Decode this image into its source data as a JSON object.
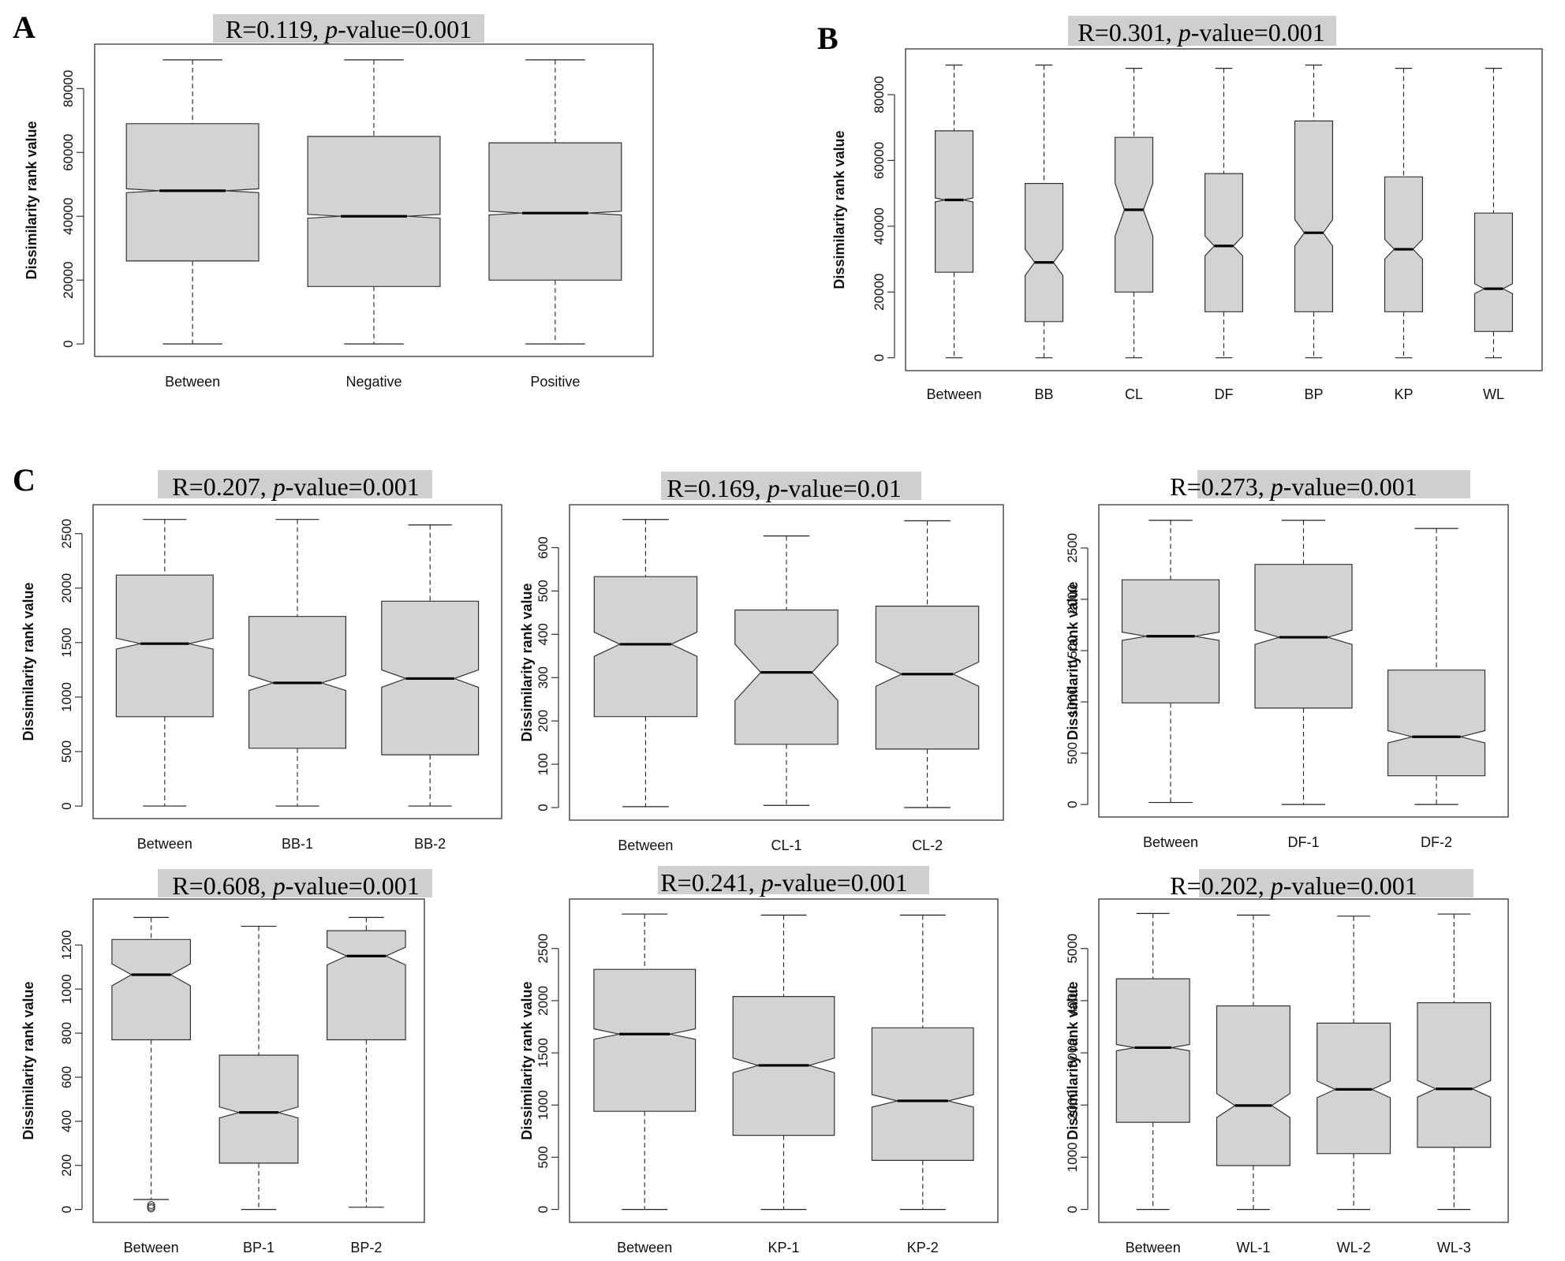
{
  "figure": {
    "panel_letters": [
      "A",
      "B",
      "C"
    ]
  },
  "chart_data": [
    {
      "type": "boxplot",
      "panel": "A",
      "title": "R=0.119, p-value=0.001",
      "title_parts": {
        "prefix": "R=0.119, ",
        "p": "p",
        "suffix": "-value=0.001"
      },
      "ylabel": "Dissimilarity rank value",
      "ylim": [
        0,
        90000
      ],
      "yticks": [
        0,
        20000,
        40000,
        60000,
        80000
      ],
      "categories": [
        "Between",
        "Negative",
        "Positive"
      ],
      "boxes": [
        {
          "min": 0,
          "q1": 26000,
          "median": 48000,
          "q3": 69000,
          "max": 89000,
          "notch": 600
        },
        {
          "min": 0,
          "q1": 18000,
          "median": 40000,
          "q3": 65000,
          "max": 89000,
          "notch": 600
        },
        {
          "min": 0,
          "q1": 20000,
          "median": 41000,
          "q3": 63000,
          "max": 89000,
          "notch": 600
        }
      ]
    },
    {
      "type": "boxplot",
      "panel": "B",
      "title": "R=0.301, p-value=0.001",
      "title_parts": {
        "prefix": "R=0.301, ",
        "p": "p",
        "suffix": "-value=0.001"
      },
      "ylabel": "Dissimilarity rank value",
      "ylim": [
        0,
        90000
      ],
      "yticks": [
        0,
        20000,
        40000,
        60000,
        80000
      ],
      "categories": [
        "Between",
        "BB",
        "CL",
        "DF",
        "BP",
        "KP",
        "WL"
      ],
      "boxes": [
        {
          "min": 0,
          "q1": 26000,
          "median": 48000,
          "q3": 69000,
          "max": 89000,
          "notch": 600
        },
        {
          "min": 0,
          "q1": 11000,
          "median": 29000,
          "q3": 53000,
          "max": 89000,
          "notch": 4000
        },
        {
          "min": 0,
          "q1": 20000,
          "median": 45000,
          "q3": 67000,
          "max": 88000,
          "notch": 8000
        },
        {
          "min": 0,
          "q1": 14000,
          "median": 34000,
          "q3": 56000,
          "max": 88000,
          "notch": 3000
        },
        {
          "min": 0,
          "q1": 14000,
          "median": 38000,
          "q3": 72000,
          "max": 89000,
          "notch": 4000
        },
        {
          "min": 0,
          "q1": 14000,
          "median": 33000,
          "q3": 55000,
          "max": 88000,
          "notch": 3000
        },
        {
          "min": 0,
          "q1": 8000,
          "median": 21000,
          "q3": 44000,
          "max": 88000,
          "notch": 1500
        }
      ]
    },
    {
      "type": "boxplot",
      "panel": "C1",
      "title": "R=0.207, p-value=0.001",
      "title_parts": {
        "prefix": "R=0.207, ",
        "p": "p",
        "suffix": "-value=0.001"
      },
      "ylabel": "Dissimilarity rank value",
      "ylim": [
        0,
        2650
      ],
      "yticks": [
        0,
        500,
        1000,
        1500,
        2000,
        2500
      ],
      "categories": [
        "Between",
        "BB-1",
        "BB-2"
      ],
      "boxes": [
        {
          "min": 0,
          "q1": 820,
          "median": 1490,
          "q3": 2120,
          "max": 2630,
          "notch": 50
        },
        {
          "min": 0,
          "q1": 530,
          "median": 1130,
          "q3": 1740,
          "max": 2630,
          "notch": 70
        },
        {
          "min": 0,
          "q1": 470,
          "median": 1170,
          "q3": 1880,
          "max": 2580,
          "notch": 80
        }
      ]
    },
    {
      "type": "boxplot",
      "panel": "C2",
      "title": "R=0.169, p-value=0.01",
      "title_parts": {
        "prefix": "R=0.169, ",
        "p": "p",
        "suffix": "-value=0.01"
      },
      "ylabel": "Dissimilarity rank value",
      "ylim": [
        0,
        670
      ],
      "yticks": [
        0,
        100,
        200,
        300,
        400,
        500,
        600
      ],
      "categories": [
        "Between",
        "CL-1",
        "CL-2"
      ],
      "boxes": [
        {
          "min": 2,
          "q1": 210,
          "median": 377,
          "q3": 533,
          "max": 665,
          "notch": 28
        },
        {
          "min": 5,
          "q1": 146,
          "median": 312,
          "q3": 456,
          "max": 627,
          "notch": 65
        },
        {
          "min": 0,
          "q1": 135,
          "median": 308,
          "q3": 465,
          "max": 662,
          "notch": 28
        }
      ]
    },
    {
      "type": "boxplot",
      "panel": "C3",
      "title": "R=0.273, p-value=0.001",
      "title_parts": {
        "prefix": "R=0.273, ",
        "p": "p",
        "suffix": "-value=0.001"
      },
      "ylabel": "Dissimilarity rank value",
      "ylim": [
        0,
        2800
      ],
      "yticks": [
        0,
        500,
        1000,
        1500,
        2000,
        2500
      ],
      "categories": [
        "Between",
        "DF-1",
        "DF-2"
      ],
      "boxes": [
        {
          "min": 20,
          "q1": 990,
          "median": 1640,
          "q3": 2190,
          "max": 2770,
          "notch": 40
        },
        {
          "min": 0,
          "q1": 940,
          "median": 1630,
          "q3": 2340,
          "max": 2770,
          "notch": 70
        },
        {
          "min": 0,
          "q1": 280,
          "median": 660,
          "q3": 1310,
          "max": 2690,
          "notch": 60
        }
      ]
    },
    {
      "type": "boxplot",
      "panel": "C4",
      "title": "R=0.608, p-value=0.001",
      "title_parts": {
        "prefix": "R=0.608, ",
        "p": "p",
        "suffix": "-value=0.001"
      },
      "ylabel": "Dissimilarity rank value",
      "ylim": [
        0,
        1350
      ],
      "yticks": [
        0,
        200,
        400,
        600,
        800,
        1000,
        1200
      ],
      "categories": [
        "Between",
        "BP-1",
        "BP-2"
      ],
      "boxes": [
        {
          "min": 45,
          "q1": 770,
          "median": 1065,
          "q3": 1225,
          "max": 1325,
          "notch": 50,
          "outliers": [
            5,
            12,
            20
          ]
        },
        {
          "min": 0,
          "q1": 210,
          "median": 440,
          "q3": 700,
          "max": 1285,
          "notch": 25
        },
        {
          "min": 10,
          "q1": 770,
          "median": 1150,
          "q3": 1265,
          "max": 1325,
          "notch": 40
        }
      ]
    },
    {
      "type": "boxplot",
      "panel": "C5",
      "title": "R=0.241, p-value=0.001",
      "title_parts": {
        "prefix": "R=0.241, ",
        "p": "p",
        "suffix": "-value=0.001"
      },
      "ylabel": "Dissimilarity rank value",
      "ylim": [
        0,
        2850
      ],
      "yticks": [
        0,
        500,
        1000,
        1500,
        2000,
        2500
      ],
      "categories": [
        "Between",
        "KP-1",
        "KP-2"
      ],
      "boxes": [
        {
          "min": 0,
          "q1": 940,
          "median": 1680,
          "q3": 2300,
          "max": 2830,
          "notch": 50
        },
        {
          "min": 0,
          "q1": 710,
          "median": 1380,
          "q3": 2040,
          "max": 2820,
          "notch": 70
        },
        {
          "min": 0,
          "q1": 470,
          "median": 1040,
          "q3": 1740,
          "max": 2820,
          "notch": 60
        }
      ]
    },
    {
      "type": "boxplot",
      "panel": "C6",
      "title": "R=0.202, p-value=0.001",
      "title_parts": {
        "prefix": "R=0.202, ",
        "p": "p",
        "suffix": "-value=0.001"
      },
      "ylabel": "Dissimilarity rank value",
      "ylim": [
        0,
        5700
      ],
      "yticks": [
        0,
        1000,
        2000,
        3000,
        4000,
        5000
      ],
      "categories": [
        "Between",
        "WL-1",
        "WL-2",
        "WL-3"
      ],
      "boxes": [
        {
          "min": 0,
          "q1": 1670,
          "median": 3100,
          "q3": 4420,
          "max": 5670,
          "notch": 60
        },
        {
          "min": 0,
          "q1": 840,
          "median": 1990,
          "q3": 3900,
          "max": 5640,
          "notch": 230
        },
        {
          "min": 0,
          "q1": 1070,
          "median": 2300,
          "q3": 3570,
          "max": 5620,
          "notch": 160
        },
        {
          "min": 0,
          "q1": 1190,
          "median": 2310,
          "q3": 3960,
          "max": 5660,
          "notch": 160
        }
      ]
    }
  ]
}
